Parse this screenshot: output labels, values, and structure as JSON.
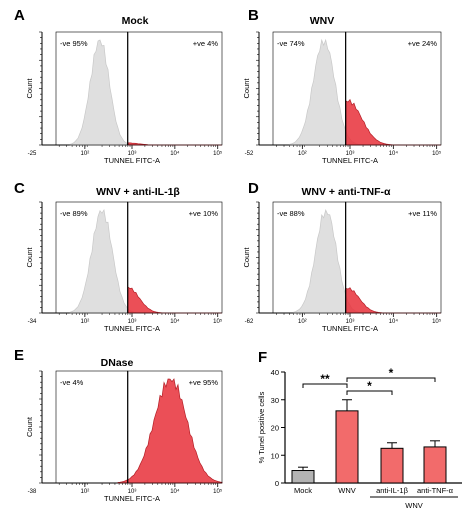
{
  "chart_data": [
    {
      "type": "area",
      "panel": "A",
      "title": "Mock",
      "xlabel": "TUNNEL FITC-A",
      "ylabel": "Count",
      "x_ticks": [
        "-25",
        "10²",
        "10³",
        "10⁴",
        "10⁵"
      ],
      "gates": [
        {
          "label": "-ve 95%"
        },
        {
          "label": "+ve 4%"
        }
      ],
      "series": [
        {
          "kind": "negative",
          "peak_log10": 2.35,
          "width": 0.22,
          "height": 1.0,
          "color": "#d9d9d9"
        },
        {
          "kind": "positive",
          "peak_log10": 3.0,
          "width": 0.25,
          "height": 0.02,
          "color": "#e8303a"
        }
      ]
    },
    {
      "type": "area",
      "panel": "B",
      "title": "WNV",
      "xlabel": "TUNNEL FITC-A",
      "ylabel": "Count",
      "x_ticks": [
        "-52",
        "10²",
        "10³",
        "10⁴",
        "10⁵"
      ],
      "gates": [
        {
          "label": "-ve 74%"
        },
        {
          "label": "+ve 24%"
        }
      ],
      "series": [
        {
          "kind": "negative",
          "peak_log10": 2.5,
          "width": 0.25,
          "height": 1.0,
          "color": "#d9d9d9"
        },
        {
          "kind": "positive",
          "peak_log10": 3.05,
          "width": 0.32,
          "height": 0.42,
          "color": "#e8303a"
        }
      ]
    },
    {
      "type": "area",
      "panel": "C",
      "title": "WNV + anti-IL-1β",
      "xlabel": "TUNNEL FITC-A",
      "ylabel": "Count",
      "x_ticks": [
        "-34",
        "10²",
        "10³",
        "10⁴",
        "10⁵"
      ],
      "gates": [
        {
          "label": "-ve 89%"
        },
        {
          "label": "+ve 10%"
        }
      ],
      "series": [
        {
          "kind": "negative",
          "peak_log10": 2.4,
          "width": 0.24,
          "height": 1.0,
          "color": "#d9d9d9"
        },
        {
          "kind": "positive",
          "peak_log10": 3.0,
          "width": 0.26,
          "height": 0.25,
          "color": "#e8303a"
        }
      ]
    },
    {
      "type": "area",
      "panel": "D",
      "title": "WNV + anti-TNF-α",
      "xlabel": "TUNNEL FITC-A",
      "ylabel": "Count",
      "x_ticks": [
        "-62",
        "10²",
        "10³",
        "10⁴",
        "10⁵"
      ],
      "gates": [
        {
          "label": "-ve 88%"
        },
        {
          "label": "+ve 11%"
        }
      ],
      "series": [
        {
          "kind": "negative",
          "peak_log10": 2.55,
          "width": 0.24,
          "height": 1.0,
          "color": "#d9d9d9"
        },
        {
          "kind": "positive",
          "peak_log10": 3.05,
          "width": 0.26,
          "height": 0.24,
          "color": "#e8303a"
        }
      ]
    },
    {
      "type": "area",
      "panel": "E",
      "title": "DNase",
      "xlabel": "TUNNEL FITC-A",
      "ylabel": "Count",
      "x_ticks": [
        "-38",
        "10²",
        "10³",
        "10⁴",
        "10⁵"
      ],
      "gates": [
        {
          "label": "-ve 4%"
        },
        {
          "label": "+ve 95%"
        }
      ],
      "series": [
        {
          "kind": "positive",
          "peak_log10": 4.0,
          "width": 0.38,
          "height": 1.0,
          "color": "#e8303a"
        }
      ]
    },
    {
      "type": "bar",
      "panel": "F",
      "ylabel": "% Tunel positive cells",
      "ylim": [
        0,
        40
      ],
      "yticks": [
        "0",
        "10",
        "20",
        "30",
        "40"
      ],
      "categories": [
        "Mock",
        "WNV",
        "anti-IL-1β",
        "anti-TNF-α"
      ],
      "group_label": "WNV",
      "values": [
        4.5,
        26,
        12.5,
        13
      ],
      "errors": [
        1.2,
        4,
        2,
        2.2
      ],
      "colors": [
        "#b3b3b3",
        "#f26b6b",
        "#f26b6b",
        "#f26b6b"
      ],
      "significance": [
        {
          "from": "Mock",
          "to": "WNV",
          "label": "**"
        },
        {
          "from": "WNV",
          "to": "anti-IL-1β",
          "label": "*"
        },
        {
          "from": "WNV",
          "to": "anti-TNF-α",
          "label": "*"
        }
      ]
    }
  ]
}
